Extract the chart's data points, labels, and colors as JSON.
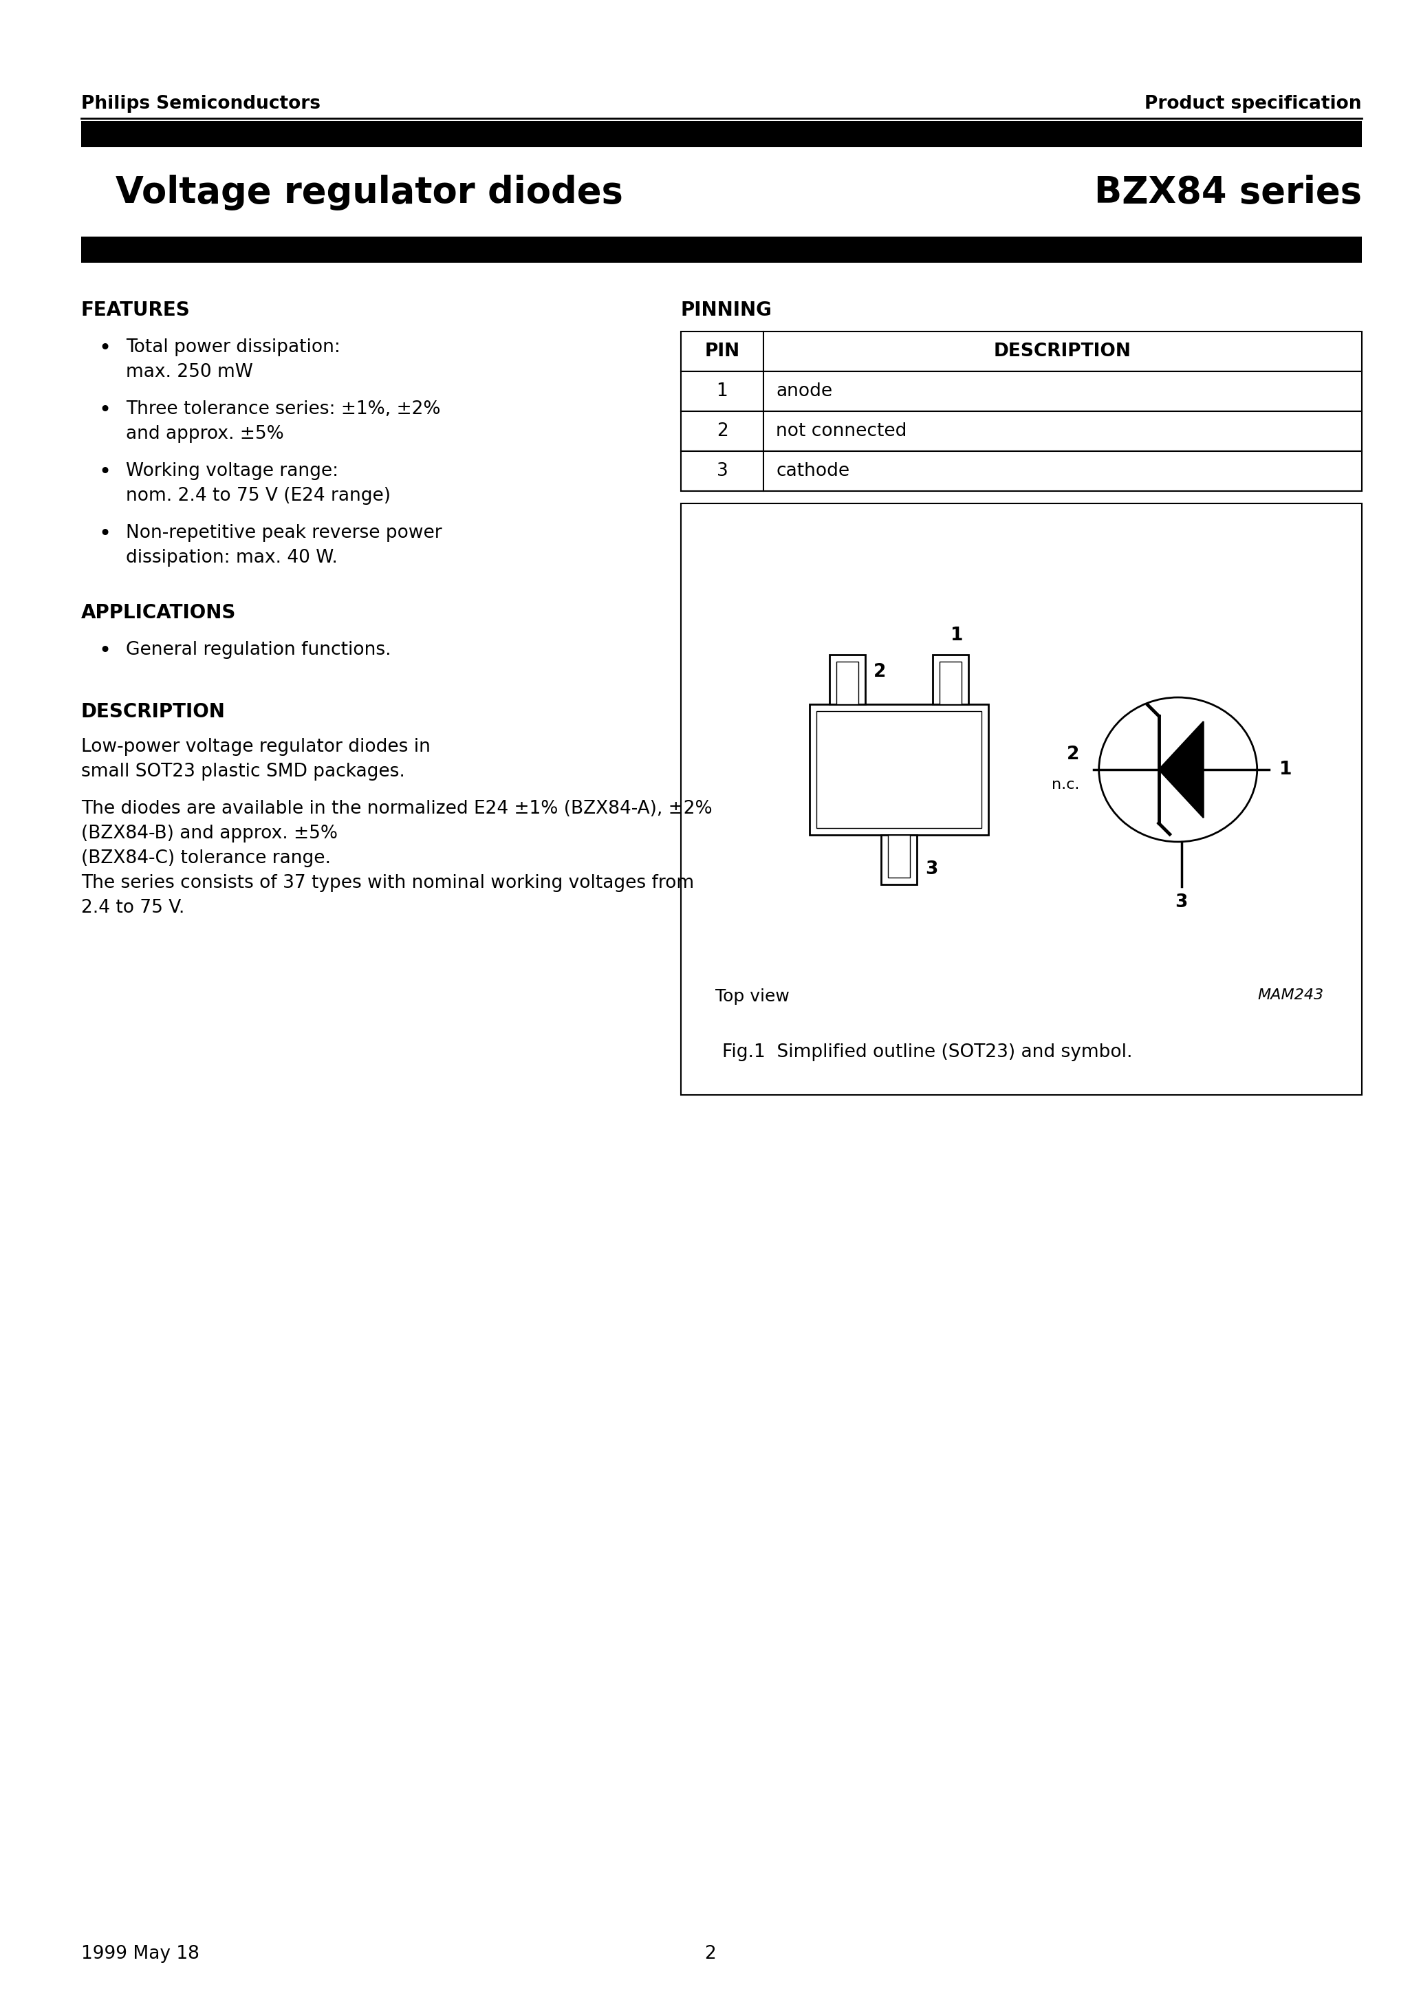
{
  "page_title_left": "Voltage regulator diodes",
  "page_title_right": "BZX84 series",
  "header_left": "Philips Semiconductors",
  "header_right": "Product specification",
  "footer_left": "1999 May 18",
  "footer_center": "2",
  "features_title": "FEATURES",
  "features_items": [
    "Total power dissipation:\nmax. 250 mW",
    "Three tolerance series: ±1%, ±2%\nand approx. ±5%",
    "Working voltage range:\nnom. 2.4 to 75 V (E24 range)",
    "Non-repetitive peak reverse power\ndissipation: max. 40 W."
  ],
  "applications_title": "APPLICATIONS",
  "applications_items": [
    "General regulation functions."
  ],
  "description_title": "DESCRIPTION",
  "description_para1": "Low-power voltage regulator diodes in small SOT23 plastic SMD packages.",
  "description_para2": "The diodes are available in the normalized E24 ±1% (BZX84-A), ±2%\n(BZX84-B) and approx. ±5%\n(BZX84-C) tolerance range.\nThe series consists of 37 types with nominal working voltages from\n2.4 to 75 V.",
  "pinning_title": "PINNING",
  "pin_headers": [
    "PIN",
    "DESCRIPTION"
  ],
  "pin_data": [
    [
      "1",
      "anode"
    ],
    [
      "2",
      "not connected"
    ],
    [
      "3",
      "cathode"
    ]
  ],
  "fig_caption": "Fig.1  Simplified outline (SOT23) and symbol.",
  "mam_label": "MAM243",
  "top_view_label": "Top view",
  "bg_color": "#ffffff",
  "text_color": "#000000"
}
